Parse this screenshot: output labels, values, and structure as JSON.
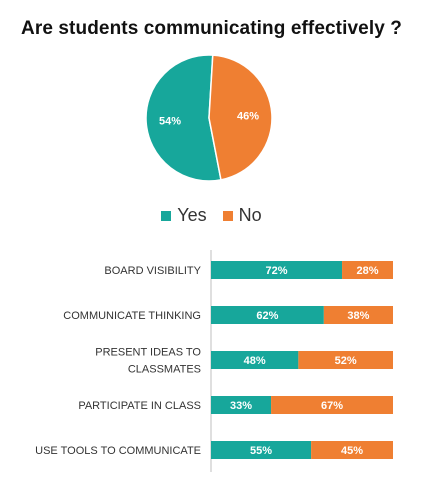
{
  "colors": {
    "yes": "#17a79b",
    "no": "#ef7f32",
    "axis": "#bfbfbf"
  },
  "chart_data": [
    {
      "type": "pie",
      "title": "Are students communicating effectively ?",
      "slices": [
        {
          "name": "Yes",
          "value": 54,
          "label": "54%"
        },
        {
          "name": "No",
          "value": 46,
          "label": "46%"
        }
      ],
      "legend": {
        "position": "bottom",
        "entries": [
          "Yes",
          "No"
        ]
      }
    },
    {
      "type": "bar",
      "orientation": "horizontal",
      "stacked": true,
      "categories": [
        [
          "BOARD VISIBILITY"
        ],
        [
          "COMMUNICATE THINKING"
        ],
        [
          "PRESENT IDEAS TO",
          "CLASSMATES"
        ],
        [
          "PARTICIPATE IN CLASS"
        ],
        [
          "USE TOOLS TO COMMUNICATE"
        ]
      ],
      "series": [
        {
          "name": "Yes",
          "values": [
            72,
            62,
            48,
            33,
            55
          ],
          "labels": [
            "72%",
            "62%",
            "48%",
            "33%",
            "55%"
          ]
        },
        {
          "name": "No",
          "values": [
            28,
            38,
            52,
            67,
            45
          ],
          "labels": [
            "28%",
            "38%",
            "52%",
            "67%",
            "45%"
          ]
        }
      ],
      "xlim": [
        0,
        100
      ],
      "grid": false
    }
  ]
}
